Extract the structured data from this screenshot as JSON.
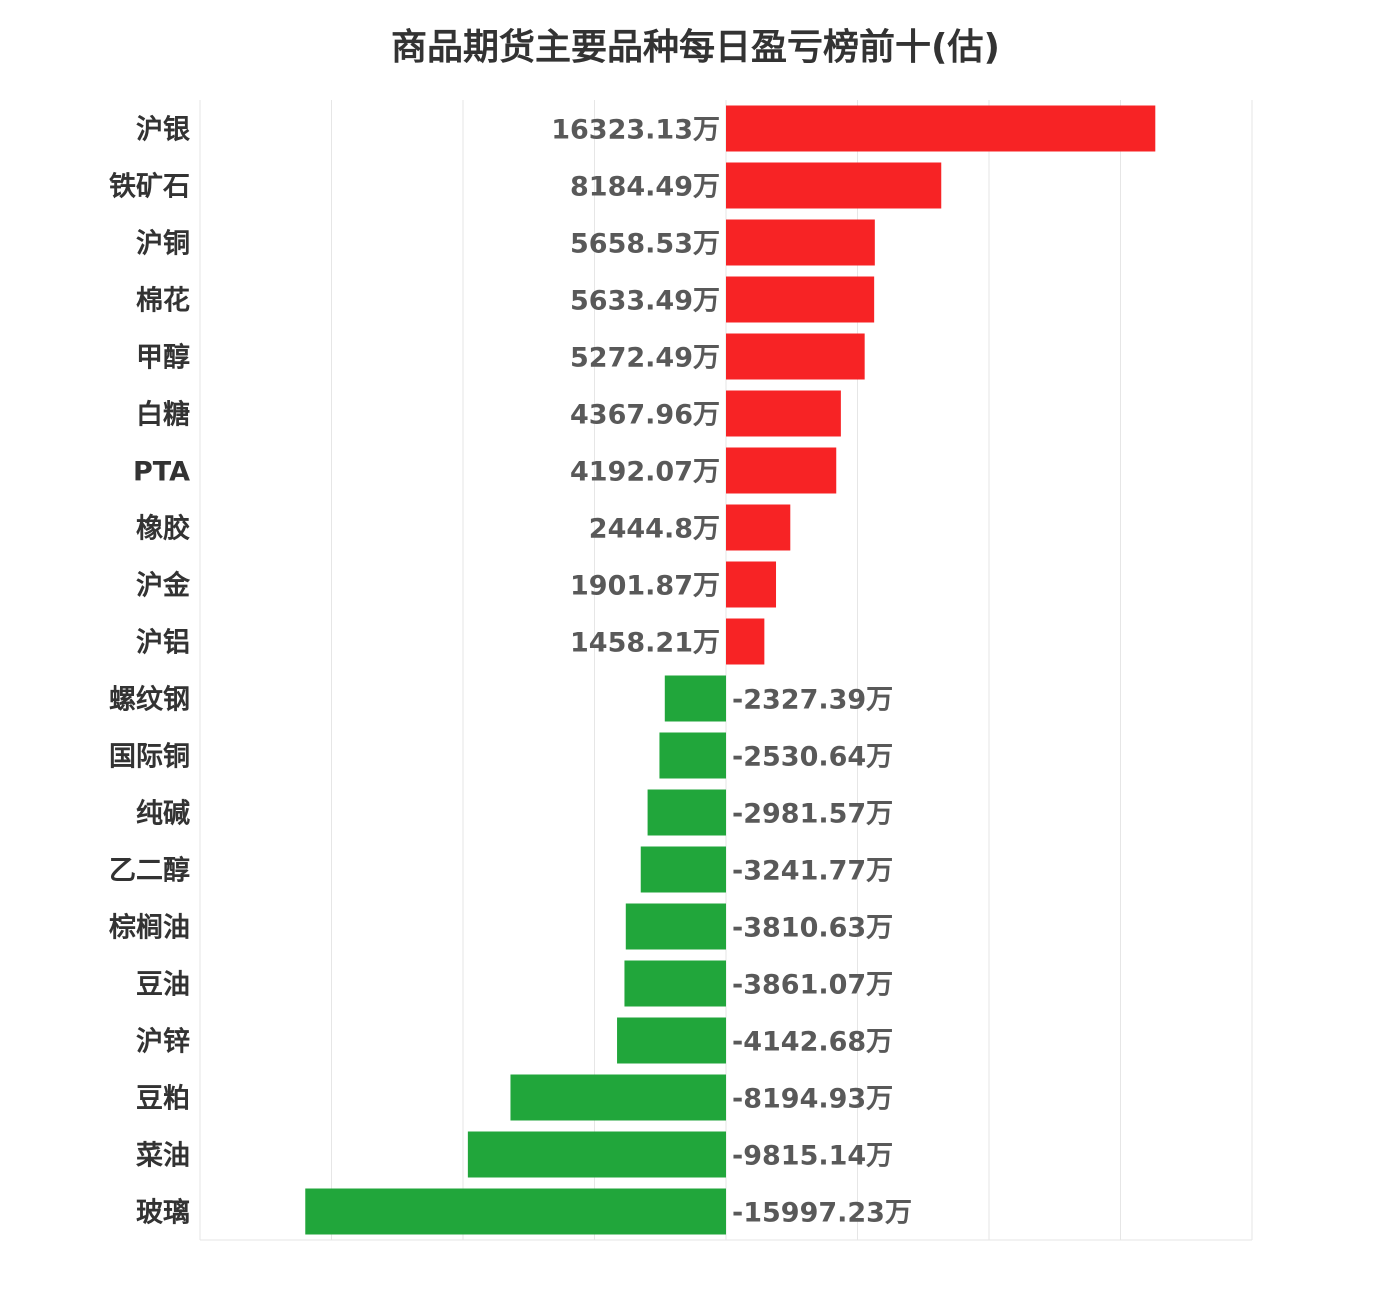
{
  "chart_data": {
    "type": "bar",
    "orientation": "horizontal",
    "title": "商品期货主要品种每日盈亏榜前十(估)",
    "unit": "万",
    "categories": [
      "沪银",
      "铁矿石",
      "沪铜",
      "棉花",
      "甲醇",
      "白糖",
      "PTA",
      "橡胶",
      "沪金",
      "沪铝",
      "螺纹钢",
      "国际铜",
      "纯碱",
      "乙二醇",
      "棕榈油",
      "豆油",
      "沪锌",
      "豆粕",
      "菜油",
      "玻璃"
    ],
    "values": [
      16323.13,
      8184.49,
      5658.53,
      5633.49,
      5272.49,
      4367.96,
      4192.07,
      2444.8,
      1901.87,
      1458.21,
      -2327.39,
      -2530.64,
      -2981.57,
      -3241.77,
      -3810.63,
      -3861.07,
      -4142.68,
      -8194.93,
      -9815.14,
      -15997.23
    ],
    "value_labels": [
      "16323.13万",
      "8184.49万",
      "5658.53万",
      "5633.49万",
      "5272.49万",
      "4367.96万",
      "4192.07万",
      "2444.8万",
      "1901.87万",
      "1458.21万",
      "-2327.39万",
      "-2530.64万",
      "-2981.57万",
      "-3241.77万",
      "-3810.63万",
      "-3861.07万",
      "-4142.68万",
      "-8194.93万",
      "-9815.14万",
      "-15997.23万"
    ],
    "xlim": [
      -20000,
      20000
    ],
    "grid": true,
    "colors": {
      "positive": "#f72325",
      "negative": "#21a63b"
    }
  }
}
